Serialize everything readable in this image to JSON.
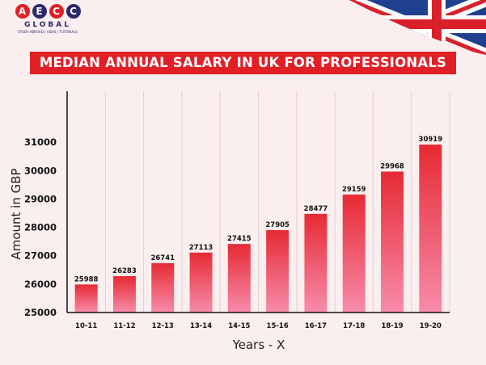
{
  "brand": {
    "letters": [
      "A",
      "E",
      "C",
      "C"
    ],
    "letter_colors": [
      "#e11f26",
      "#2a2a6e",
      "#e11f26",
      "#2a2a6e"
    ],
    "word": "GLOBAL",
    "tagline": "STUDY ABROAD | VISAS | TUTORIALS"
  },
  "colors": {
    "background": "#fbeeee",
    "banner": "#e11f26",
    "bar_top": "#e62a33",
    "bar_bottom": "#f78cab",
    "text": "#222222"
  },
  "chart_data": {
    "type": "bar",
    "title": "MEDIAN ANNUAL SALARY IN UK FOR PROFESSIONALS",
    "xlabel": "Years - X",
    "ylabel": "Amount in GBP",
    "categories": [
      "10-11",
      "11-12",
      "12-13",
      "13-14",
      "14-15",
      "15-16",
      "16-17",
      "17-18",
      "18-19",
      "19-20"
    ],
    "values": [
      25988,
      26283,
      26741,
      27113,
      27415,
      27905,
      28477,
      29159,
      29968,
      30919
    ],
    "yticks": [
      25000,
      26000,
      27000,
      28000,
      29000,
      30000,
      31000
    ],
    "ylim": [
      25000,
      32800
    ],
    "grid": "vertical",
    "legend": "none"
  }
}
